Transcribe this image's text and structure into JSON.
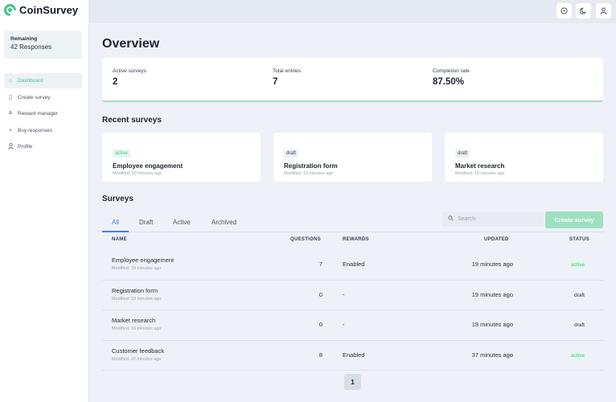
{
  "app": {
    "name": "CoinSurvey"
  },
  "sidebar": {
    "remaining_label": "Remaining",
    "remaining_value": "42 Responses",
    "items": [
      {
        "label": "Dashboard",
        "icon": "home-icon"
      },
      {
        "label": "Create survey",
        "icon": "document-icon"
      },
      {
        "label": "Reward manager",
        "icon": "coins-icon"
      },
      {
        "label": "Buy responses",
        "icon": "plus-icon"
      },
      {
        "label": "Profile",
        "icon": "user-icon"
      }
    ]
  },
  "topbar": {
    "icons": [
      "help-icon",
      "moon-icon",
      "user-icon"
    ]
  },
  "overview": {
    "title": "Overview",
    "stats": [
      {
        "label": "Active surveys",
        "value": "2"
      },
      {
        "label": "Total entries",
        "value": "7"
      },
      {
        "label": "Completion rate",
        "value": "87.50%"
      }
    ]
  },
  "recent": {
    "title": "Recent surveys",
    "cards": [
      {
        "status": "active",
        "name": "Employee engagement",
        "modified": "Modified: 19 minutes ago"
      },
      {
        "status": "draft",
        "name": "Registration form",
        "modified": "Modified: 19 minutes ago"
      },
      {
        "status": "draft",
        "name": "Market research",
        "modified": "Modified: 19 minutes ago"
      }
    ]
  },
  "surveys": {
    "title": "Surveys",
    "tabs": [
      "All",
      "Draft",
      "Active",
      "Archived"
    ],
    "search_placeholder": "Search",
    "create_label": "Create survey",
    "columns": [
      "NAME",
      "QUESTIONS",
      "REWARDS",
      "UPDATED",
      "STATUS"
    ],
    "rows": [
      {
        "name": "Employee engagement",
        "modified": "Modified: 19 minutes ago",
        "questions": "7",
        "rewards": "Enabled",
        "updated": "19 minutes ago",
        "status": "active"
      },
      {
        "name": "Registration form",
        "modified": "Modified: 19 minutes ago",
        "questions": "0",
        "rewards": "-",
        "updated": "19 minutes ago",
        "status": "draft"
      },
      {
        "name": "Market research",
        "modified": "Modified: 19 minutes ago",
        "questions": "0",
        "rewards": "-",
        "updated": "19 minutes ago",
        "status": "draft"
      },
      {
        "name": "Customer feedback",
        "modified": "Modified: 37 minutes ago",
        "questions": "8",
        "rewards": "Enabled",
        "updated": "37 minutes ago",
        "status": "active"
      }
    ],
    "page": "1"
  },
  "colors": {
    "accent": "#3fc78a",
    "tab_active": "#3b82f6",
    "background": "#eef1f7"
  }
}
